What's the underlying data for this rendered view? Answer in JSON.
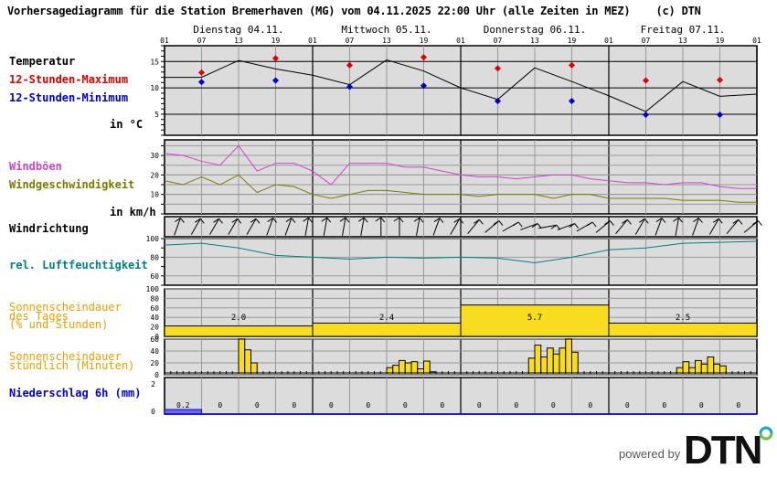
{
  "header": {
    "title": "Vorhersagediagramm für die Station Bremerhaven (MG) vom 04.11.2025 22:00 Uhr (alle Zeiten in MEZ)    (c) DTN"
  },
  "days": [
    "Dienstag 04.11.",
    "Mittwoch 05.11.",
    "Donnerstag 06.11.",
    "Freitag 07.11."
  ],
  "hour_ticks": [
    "01",
    "07",
    "13",
    "19",
    "01",
    "07",
    "13",
    "19",
    "01",
    "07",
    "13",
    "19",
    "01",
    "07",
    "13",
    "19",
    "01"
  ],
  "labels": {
    "temperature": "Temperatur",
    "max12": "12-Stunden-Maximum",
    "min12": "12-Stunden-Minimum",
    "temp_unit": "in °C",
    "gusts": "Windböen",
    "windspeed": "Windgeschwindigkeit",
    "wind_unit": "in km/h",
    "wind_direction": "Windrichtung",
    "humidity": "rel. Luftfeuchtigkeit",
    "sun_daily_1": "Sonnenscheindauer",
    "sun_daily_2": "des Tages",
    "sun_daily_3": "(% und Stunden)",
    "sun_hourly_1": "Sonnenscheindauer",
    "sun_hourly_2": "stündlich (Minuten)",
    "precip": "Niederschlag 6h (mm)"
  },
  "colors": {
    "temperature": "#000000",
    "max": "#dd0000",
    "min": "#0000cc",
    "gusts": "#cc44cc",
    "windspeed": "#7a7a00",
    "humidity": "#008080",
    "sunshine": "#e8a000",
    "sun_fill": "#f8dc20",
    "precip": "#0000dd",
    "plot_bg": "#dcdcdc"
  },
  "footer": {
    "powered_by": "powered by",
    "brand": "DTN"
  },
  "chart_data": [
    {
      "type": "line",
      "title": "Temperatur",
      "ylabel": "in °C",
      "ylim": [
        1,
        18
      ],
      "yticks": [
        5,
        10,
        15
      ],
      "x_hours": [
        1,
        7,
        13,
        19,
        25,
        31,
        37,
        43,
        49,
        55,
        61,
        67,
        73,
        79,
        85,
        91,
        97
      ],
      "series": [
        {
          "name": "Temperatur",
          "values": [
            12.0,
            12.0,
            15.2,
            13.6,
            12.4,
            10.6,
            15.3,
            13.2,
            10.0,
            7.8,
            13.8,
            11.2,
            8.5,
            5.5,
            11.2,
            8.4,
            8.8
          ]
        },
        {
          "name": "12-Stunden-Maximum",
          "points": [
            [
              7,
              12.9
            ],
            [
              19,
              15.6
            ],
            [
              31,
              14.3
            ],
            [
              43,
              15.8
            ],
            [
              55,
              13.7
            ],
            [
              67,
              14.3
            ],
            [
              79,
              11.4
            ],
            [
              91,
              11.5
            ]
          ]
        },
        {
          "name": "12-Stunden-Minimum",
          "points": [
            [
              7,
              11.1
            ],
            [
              19,
              11.4
            ],
            [
              31,
              10.2
            ],
            [
              43,
              10.4
            ],
            [
              55,
              7.5
            ],
            [
              67,
              7.5
            ],
            [
              79,
              4.9
            ],
            [
              91,
              4.9
            ]
          ]
        }
      ]
    },
    {
      "type": "line",
      "title": "Wind",
      "ylabel": "in km/h",
      "ylim": [
        0,
        38
      ],
      "yticks": [
        10,
        20,
        30
      ],
      "x_hours": [
        1,
        4,
        7,
        10,
        13,
        16,
        19,
        22,
        25,
        28,
        31,
        34,
        37,
        40,
        43,
        46,
        49,
        52,
        55,
        58,
        61,
        64,
        67,
        70,
        73,
        76,
        79,
        82,
        85,
        88,
        91,
        94,
        97
      ],
      "series": [
        {
          "name": "Windböen",
          "values": [
            31,
            30,
            27,
            25,
            35,
            22,
            26,
            26,
            22,
            15,
            26,
            26,
            26,
            24,
            24,
            22,
            20,
            19,
            19,
            18,
            19,
            20,
            20,
            18,
            17,
            16,
            16,
            15,
            16,
            16,
            14,
            13,
            13
          ]
        },
        {
          "name": "Windgeschwindigkeit",
          "values": [
            17,
            15,
            19,
            15,
            20,
            11,
            15,
            14,
            10,
            8,
            10,
            12,
            12,
            11,
            10,
            10,
            10,
            9,
            10,
            10,
            10,
            8,
            10,
            10,
            8,
            8,
            8,
            8,
            7,
            7,
            7,
            6,
            6
          ]
        }
      ]
    },
    {
      "type": "line",
      "title": "rel. Luftfeuchtigkeit",
      "ylim": [
        50,
        100
      ],
      "yticks": [
        60,
        80,
        100
      ],
      "x_hours": [
        1,
        7,
        13,
        19,
        25,
        31,
        37,
        43,
        49,
        55,
        61,
        67,
        73,
        79,
        85,
        91,
        97
      ],
      "series": [
        {
          "name": "rel. Luftfeuchtigkeit",
          "values": [
            93,
            95,
            90,
            82,
            80,
            78,
            80,
            79,
            80,
            79,
            74,
            80,
            88,
            90,
            95,
            96,
            97
          ]
        }
      ]
    },
    {
      "type": "bar",
      "title": "Sonnenscheindauer des Tages (% und Stunden)",
      "ylim": [
        0,
        100
      ],
      "categories": [
        "Dienstag 04.11.",
        "Mittwoch 05.11.",
        "Donnerstag 06.11.",
        "Freitag 07.11."
      ],
      "series": [
        {
          "name": "Prozent",
          "values": [
            22,
            28,
            66,
            28
          ]
        },
        {
          "name": "Stunden",
          "values": [
            2.0,
            2.4,
            5.7,
            2.5
          ]
        }
      ]
    },
    {
      "type": "bar",
      "title": "Sonnenscheindauer stündlich (Minuten)",
      "ylim": [
        0,
        60
      ],
      "series": [
        {
          "name": "Dienstag 04.11.",
          "hours": [
            9,
            10,
            11
          ],
          "values": [
            60,
            42,
            20
          ]
        },
        {
          "name": "Mittwoch 05.11.",
          "hours": [
            8,
            9,
            10,
            11,
            12,
            13,
            14,
            15,
            16
          ],
          "values": [
            2,
            12,
            16,
            24,
            20,
            22,
            10,
            23,
            5
          ]
        },
        {
          "name": "Donnerstag 06.11.",
          "hours": [
            8,
            9,
            10,
            11,
            12,
            13,
            14,
            15
          ],
          "values": [
            28,
            50,
            30,
            45,
            35,
            45,
            60,
            38
          ]
        },
        {
          "name": "Freitag 07.11.",
          "hours": [
            8,
            9,
            10,
            11,
            12,
            13,
            14,
            15
          ],
          "values": [
            12,
            22,
            12,
            24,
            18,
            30,
            18,
            15
          ]
        }
      ]
    },
    {
      "type": "bar",
      "title": "Niederschlag 6h (mm)",
      "ylim": [
        0,
        2
      ],
      "categories": [
        "01",
        "07",
        "13",
        "19",
        "01",
        "07",
        "13",
        "19",
        "01",
        "07",
        "13",
        "19",
        "01",
        "07",
        "13",
        "19"
      ],
      "values": [
        0.2,
        0,
        0,
        0,
        0,
        0,
        0,
        0,
        0,
        0,
        0,
        0,
        0,
        0,
        0,
        0
      ]
    }
  ]
}
